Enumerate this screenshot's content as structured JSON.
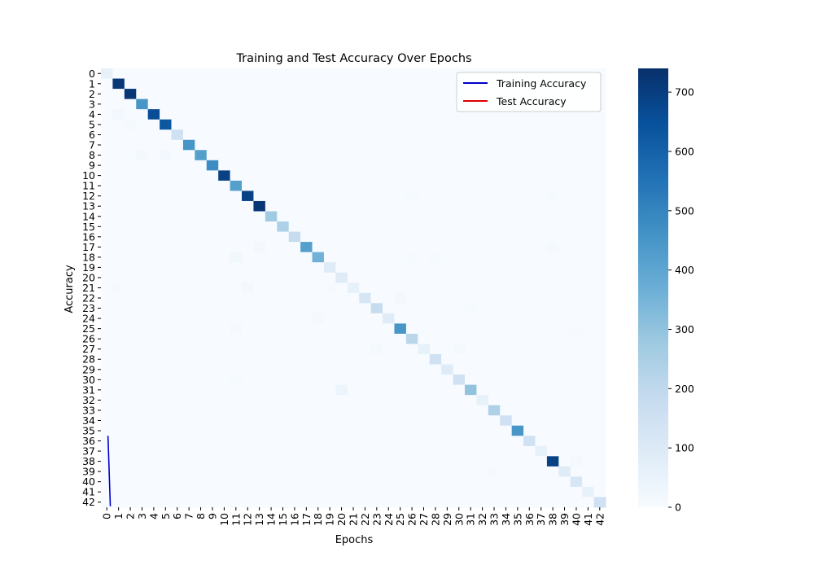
{
  "chart_data": {
    "type": "heatmap",
    "title": "Training and Test Accuracy Over Epochs",
    "xlabel": "Epochs",
    "ylabel": "Accuracy",
    "x_ticks": [
      "0",
      "1",
      "2",
      "3",
      "4",
      "5",
      "6",
      "7",
      "8",
      "9",
      "10",
      "11",
      "12",
      "13",
      "14",
      "15",
      "16",
      "17",
      "18",
      "19",
      "20",
      "21",
      "22",
      "23",
      "24",
      "25",
      "26",
      "27",
      "28",
      "29",
      "30",
      "31",
      "32",
      "33",
      "34",
      "35",
      "36",
      "37",
      "38",
      "39",
      "40",
      "41",
      "42"
    ],
    "y_ticks": [
      "0",
      "1",
      "2",
      "3",
      "4",
      "5",
      "6",
      "7",
      "8",
      "9",
      "10",
      "11",
      "12",
      "13",
      "14",
      "15",
      "16",
      "17",
      "18",
      "19",
      "20",
      "21",
      "22",
      "23",
      "24",
      "25",
      "26",
      "27",
      "28",
      "29",
      "30",
      "31",
      "32",
      "33",
      "34",
      "35",
      "36",
      "37",
      "38",
      "39",
      "40",
      "41",
      "42"
    ],
    "diagonal_values": [
      60,
      720,
      720,
      450,
      660,
      630,
      150,
      450,
      420,
      480,
      690,
      420,
      690,
      720,
      270,
      240,
      180,
      420,
      360,
      90,
      90,
      60,
      120,
      180,
      90,
      450,
      210,
      60,
      150,
      90,
      150,
      300,
      60,
      240,
      150,
      450,
      150,
      60,
      690,
      90,
      120,
      60,
      150
    ],
    "off_diagonal": [
      {
        "row": 4,
        "col": 1,
        "value": 20
      },
      {
        "row": 5,
        "col": 2,
        "value": 10
      },
      {
        "row": 8,
        "col": 3,
        "value": 15
      },
      {
        "row": 8,
        "col": 5,
        "value": 18
      },
      {
        "row": 12,
        "col": 26,
        "value": 8
      },
      {
        "row": 12,
        "col": 38,
        "value": 8
      },
      {
        "row": 17,
        "col": 13,
        "value": 15
      },
      {
        "row": 17,
        "col": 38,
        "value": 10
      },
      {
        "row": 18,
        "col": 11,
        "value": 25
      },
      {
        "row": 18,
        "col": 26,
        "value": 8
      },
      {
        "row": 18,
        "col": 28,
        "value": 8
      },
      {
        "row": 21,
        "col": 12,
        "value": 15
      },
      {
        "row": 21,
        "col": 1,
        "value": 8
      },
      {
        "row": 21,
        "col": 19,
        "value": 8
      },
      {
        "row": 22,
        "col": 25,
        "value": 15
      },
      {
        "row": 23,
        "col": 31,
        "value": 8
      },
      {
        "row": 24,
        "col": 18,
        "value": 10
      },
      {
        "row": 25,
        "col": 11,
        "value": 10
      },
      {
        "row": 25,
        "col": 40,
        "value": 8
      },
      {
        "row": 27,
        "col": 23,
        "value": 10
      },
      {
        "row": 27,
        "col": 30,
        "value": 12
      },
      {
        "row": 30,
        "col": 11,
        "value": 8
      },
      {
        "row": 31,
        "col": 20,
        "value": 40
      },
      {
        "row": 38,
        "col": 40,
        "value": 10
      },
      {
        "row": 39,
        "col": 33,
        "value": 8
      }
    ],
    "vmin": 0,
    "vmax": 740,
    "colorbar_ticks": [
      "0",
      "100",
      "200",
      "300",
      "400",
      "500",
      "600",
      "700"
    ],
    "colorbar_values": [
      0,
      100,
      200,
      300,
      400,
      500,
      600,
      700
    ],
    "colormap": [
      "#f7fbff",
      "#deebf7",
      "#c6dbef",
      "#9ecae1",
      "#6baed6",
      "#4292c6",
      "#2171b5",
      "#08519c",
      "#08306b"
    ],
    "legend": {
      "placement": "top-right",
      "entries": [
        {
          "label": "Training Accuracy",
          "color": "#0000cc"
        },
        {
          "label": "Test Accuracy",
          "color": "#e00000"
        }
      ]
    },
    "training_line": {
      "color": "#0000cc",
      "x": [
        0.6,
        0.8
      ],
      "y": [
        36,
        42.9
      ]
    },
    "test_line": {
      "color": "#e00000",
      "x": [],
      "y": []
    }
  }
}
